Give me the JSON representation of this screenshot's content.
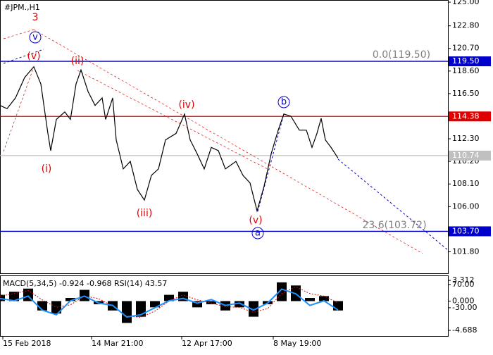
{
  "chart_data": [
    {
      "type": "line",
      "title": "#JPM.,H1",
      "x": [
        0,
        10,
        22,
        35,
        48,
        58,
        68,
        72,
        80,
        92,
        100,
        108,
        115,
        125,
        135,
        145,
        150,
        160,
        165,
        175,
        185,
        195,
        205,
        215,
        225,
        235,
        250,
        262,
        270,
        280,
        290,
        300,
        310,
        320,
        335,
        345,
        355,
        365,
        375,
        385,
        395,
        403,
        413,
        425,
        435,
        443,
        450,
        456,
        462,
        470,
        480
      ],
      "series": [
        {
          "color": "#000000",
          "values": [
            115.4,
            115.1,
            116.1,
            118.0,
            119.0,
            117.4,
            112.8,
            111.2,
            114.1,
            114.8,
            114.1,
            117.4,
            118.7,
            116.7,
            115.4,
            116.1,
            114.1,
            116.1,
            112.2,
            109.5,
            110.2,
            107.6,
            106.6,
            108.9,
            109.5,
            112.2,
            112.8,
            114.6,
            112.2,
            110.9,
            109.5,
            111.5,
            111.2,
            109.5,
            110.2,
            108.9,
            108.2,
            105.6,
            107.9,
            110.9,
            113.1,
            114.6,
            114.4,
            113.1,
            113.1,
            111.5,
            112.8,
            114.2,
            112.2,
            111.5,
            110.5
          ]
        }
      ],
      "xlim": [
        0,
        636
      ],
      "ylim": [
        99.8,
        125.2
      ],
      "yticks": [
        {
          "value": 125,
          "label": "125.00"
        },
        {
          "value": 122.8,
          "label": "122.80"
        },
        {
          "value": 120.7,
          "label": "120.70"
        },
        {
          "value": 118.6,
          "label": "118.60"
        },
        {
          "value": 116.5,
          "label": "116.50"
        },
        {
          "value": 112.3,
          "label": "112.30"
        },
        {
          "value": 110.2,
          "label": "110.20"
        },
        {
          "value": 108.1,
          "label": "108.10"
        },
        {
          "value": 106,
          "label": "106.00"
        },
        {
          "value": 101.8,
          "label": "101.80"
        }
      ],
      "levels": [
        {
          "value": 119.5,
          "label": "119.50",
          "color": "#0000cc"
        },
        {
          "value": 114.38,
          "label": "114.38",
          "color": "#e00000"
        },
        {
          "value": 110.74,
          "label": "110.74",
          "color": "#c0c0c0"
        },
        {
          "value": 103.7,
          "label": "103.70",
          "color": "#0000cc"
        }
      ],
      "annotations": [
        {
          "text": "3",
          "color": "#e00000"
        },
        {
          "text": "v",
          "color": "#0000cc",
          "circled": true
        },
        {
          "text": "(v)",
          "color": "#e00000"
        },
        {
          "text": "(i)",
          "color": "#e00000"
        },
        {
          "text": "(ii)",
          "color": "#e00000"
        },
        {
          "text": "(iii)",
          "color": "#e00000"
        },
        {
          "text": "(iv)",
          "color": "#e00000"
        },
        {
          "text": "(v)",
          "color": "#e00000"
        },
        {
          "text": "a",
          "color": "#0000cc",
          "circled": true
        },
        {
          "text": "b",
          "color": "#0000cc",
          "circled": true
        },
        {
          "text": "0.0(119.50)",
          "color": "#808080"
        },
        {
          "text": "23.6(103.72)",
          "color": "#808080"
        }
      ]
    },
    {
      "type": "macd",
      "title": "MACD(5,34,5) -0.924 -0.968 RSI(14) 43.57",
      "x": [
        0,
        20,
        40,
        60,
        80,
        100,
        120,
        140,
        160,
        180,
        200,
        220,
        240,
        260,
        280,
        300,
        320,
        340,
        360,
        380,
        400,
        420,
        440,
        460,
        480
      ],
      "series": [
        {
          "color": "#000000",
          "values": [
            1.0,
            1.5,
            2.0,
            -1.5,
            -2.0,
            0.5,
            1.8,
            -0.5,
            -1.5,
            -3.5,
            -2.5,
            -1.0,
            1.0,
            1.5,
            -1.0,
            -0.5,
            -1.5,
            -1.0,
            -2.5,
            -0.5,
            3.0,
            2.5,
            0.5,
            0.8,
            -1.5
          ]
        },
        {
          "color": "#e00000",
          "values": [
            0.8,
            1.2,
            1.7,
            0.2,
            -1.0,
            -0.6,
            0.8,
            0.4,
            -0.8,
            -2.4,
            -2.6,
            -1.6,
            0.0,
            1.0,
            0.2,
            -0.3,
            -0.9,
            -1.0,
            -1.8,
            -1.2,
            1.2,
            2.3,
            1.2,
            0.8,
            -0.3
          ]
        },
        {
          "color": "#1e90ff",
          "axis": "y2",
          "values": [
            10,
            0,
            20,
            -40,
            -60,
            0,
            20,
            -10,
            -20,
            -70,
            -60,
            -30,
            0,
            10,
            -10,
            5,
            -20,
            -10,
            -40,
            -10,
            50,
            30,
            -20,
            0,
            -40
          ]
        }
      ],
      "xlim": [
        0,
        636
      ],
      "ylim": [
        -5.7,
        4.0
      ],
      "yticks": [
        {
          "value": 3.312,
          "label": "3.312"
        },
        {
          "value": 0,
          "label": "0.000"
        },
        {
          "value": -4.688,
          "label": "-4.688"
        }
      ],
      "y2lim": [
        -154.5,
        106
      ],
      "y2ticks": [
        {
          "value": 70,
          "label": "70.00"
        },
        {
          "value": -30,
          "label": "-30.00"
        }
      ],
      "xticks": [
        {
          "value": 4,
          "label": "15 Feb 2018"
        },
        {
          "value": 130,
          "label": "14 Mar 21:00"
        },
        {
          "value": 258,
          "label": "12 Apr 17:00"
        },
        {
          "value": 388,
          "label": "8 May 19:00"
        }
      ]
    }
  ]
}
